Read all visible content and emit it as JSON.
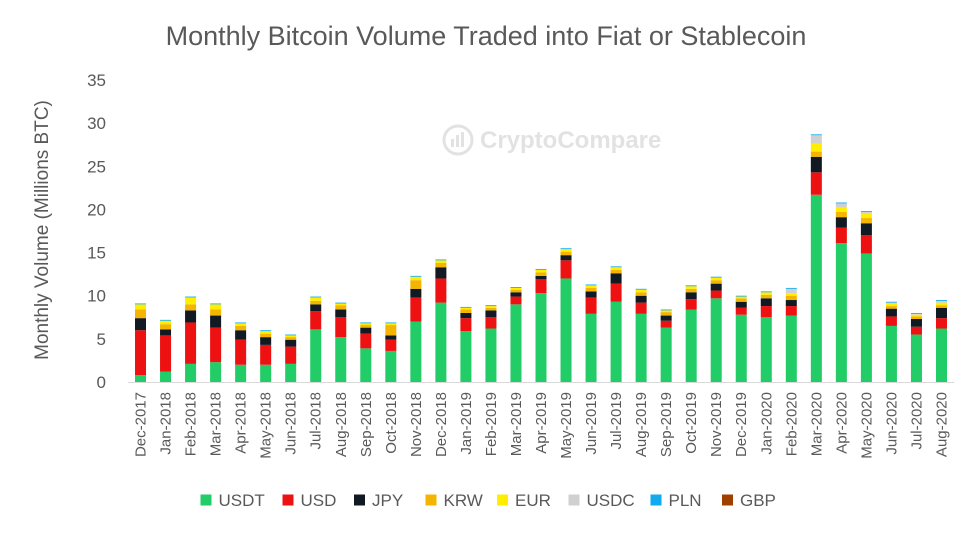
{
  "chart_data": {
    "type": "bar",
    "stacked": true,
    "title": "Monthly Bitcoin Volume Traded into Fiat or Stablecoin",
    "xlabel": "",
    "ylabel": "Monthly Volume (Millions BTC)",
    "ylim": [
      0,
      35
    ],
    "yticks": [
      0,
      5,
      10,
      15,
      20,
      25,
      30,
      35
    ],
    "grid": false,
    "legend_position": "bottom",
    "watermark": "CryptoCompare",
    "categories": [
      "Dec-2017",
      "Jan-2018",
      "Feb-2018",
      "Mar-2018",
      "Apr-2018",
      "May-2018",
      "Jun-2018",
      "Jul-2018",
      "Aug-2018",
      "Sep-2018",
      "Oct-2018",
      "Nov-2018",
      "Dec-2018",
      "Jan-2019",
      "Feb-2019",
      "Mar-2019",
      "Apr-2019",
      "May-2019",
      "Jun-2019",
      "Jul-2019",
      "Aug-2019",
      "Sep-2019",
      "Oct-2019",
      "Nov-2019",
      "Dec-2019",
      "Jan-2020",
      "Feb-2020",
      "Mar-2020",
      "Apr-2020",
      "May-2020",
      "Jun-2020",
      "Jul-2020",
      "Aug-2020"
    ],
    "series": [
      {
        "name": "USDT",
        "color": "#22cc66",
        "values": [
          0.8,
          1.2,
          2.1,
          2.3,
          2.0,
          2.0,
          2.1,
          6.1,
          5.2,
          3.9,
          3.6,
          7.0,
          9.2,
          5.9,
          6.2,
          9.0,
          10.3,
          12.0,
          7.9,
          9.3,
          7.9,
          6.3,
          8.4,
          9.7,
          7.8,
          7.5,
          7.7,
          21.7,
          16.1,
          14.9,
          6.5,
          5.5,
          6.2
        ]
      },
      {
        "name": "USD",
        "color": "#ee1111",
        "values": [
          5.2,
          4.2,
          4.8,
          4.0,
          2.9,
          2.3,
          2.0,
          2.1,
          2.3,
          1.7,
          1.3,
          2.8,
          2.8,
          1.5,
          1.3,
          0.9,
          1.6,
          2.1,
          1.9,
          2.1,
          1.3,
          0.8,
          1.2,
          0.9,
          0.8,
          1.3,
          1.1,
          2.6,
          1.8,
          2.1,
          1.1,
          0.9,
          1.2
        ]
      },
      {
        "name": "JPY",
        "color": "#111a22",
        "values": [
          1.4,
          0.7,
          1.4,
          1.4,
          1.1,
          0.9,
          0.8,
          0.8,
          0.9,
          0.7,
          0.5,
          1.0,
          1.3,
          0.6,
          0.8,
          0.5,
          0.4,
          0.6,
          0.7,
          1.2,
          0.8,
          0.6,
          0.8,
          0.8,
          0.7,
          0.9,
          0.7,
          1.8,
          1.2,
          1.4,
          0.9,
          0.9,
          1.2
        ]
      },
      {
        "name": "KRW",
        "color": "#f5b400",
        "values": [
          1.0,
          0.6,
          0.7,
          0.7,
          0.5,
          0.4,
          0.3,
          0.4,
          0.5,
          0.3,
          1.2,
          1.0,
          0.5,
          0.4,
          0.3,
          0.3,
          0.4,
          0.4,
          0.4,
          0.4,
          0.4,
          0.4,
          0.4,
          0.4,
          0.4,
          0.4,
          0.5,
          0.6,
          0.6,
          0.6,
          0.3,
          0.3,
          0.3
        ]
      },
      {
        "name": "EUR",
        "color": "#ffee00",
        "values": [
          0.6,
          0.4,
          0.8,
          0.6,
          0.3,
          0.3,
          0.2,
          0.4,
          0.2,
          0.2,
          0.2,
          0.4,
          0.3,
          0.2,
          0.2,
          0.2,
          0.3,
          0.3,
          0.3,
          0.3,
          0.3,
          0.2,
          0.3,
          0.3,
          0.2,
          0.3,
          0.3,
          0.9,
          0.5,
          0.5,
          0.3,
          0.2,
          0.3
        ]
      },
      {
        "name": "USDC",
        "color": "#d0d0d0",
        "values": [
          0,
          0,
          0,
          0,
          0,
          0,
          0,
          0,
          0,
          0,
          0,
          0,
          0,
          0,
          0,
          0,
          0,
          0,
          0,
          0,
          0,
          0,
          0,
          0,
          0,
          0,
          0.5,
          1.0,
          0.5,
          0.2,
          0.1,
          0.1,
          0.2
        ]
      },
      {
        "name": "PLN",
        "color": "#11aaee",
        "values": [
          0.1,
          0.1,
          0.1,
          0.1,
          0.1,
          0.1,
          0.1,
          0.1,
          0.1,
          0.1,
          0.1,
          0.1,
          0.1,
          0.1,
          0.1,
          0.1,
          0.1,
          0.1,
          0.1,
          0.1,
          0.1,
          0.1,
          0.1,
          0.1,
          0.1,
          0.1,
          0.1,
          0.1,
          0.1,
          0.1,
          0.1,
          0.1,
          0.1
        ]
      },
      {
        "name": "GBP",
        "color": "#a04000",
        "values": [
          0,
          0,
          0,
          0,
          0,
          0,
          0,
          0,
          0,
          0,
          0,
          0,
          0,
          0,
          0,
          0,
          0,
          0,
          0,
          0,
          0,
          0,
          0,
          0,
          0,
          0,
          0,
          0,
          0,
          0,
          0,
          0,
          0
        ]
      }
    ]
  }
}
